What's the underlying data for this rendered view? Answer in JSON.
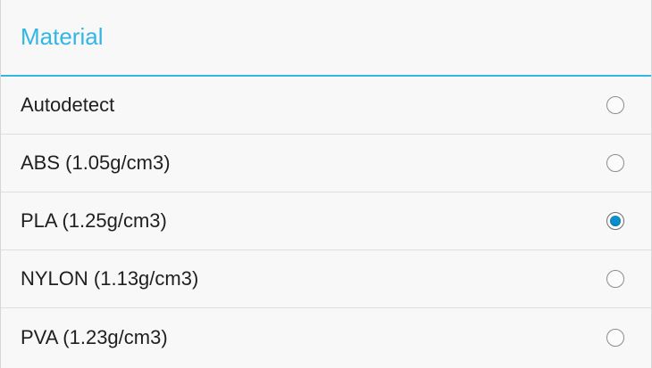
{
  "dialog": {
    "title": "Material",
    "accent_color": "#33b5e5",
    "selected_color": "#0d8fcf",
    "options": [
      {
        "label": "Autodetect",
        "selected": false
      },
      {
        "label": "ABS (1.05g/cm3)",
        "selected": false
      },
      {
        "label": "PLA (1.25g/cm3)",
        "selected": true
      },
      {
        "label": "NYLON (1.13g/cm3)",
        "selected": false
      },
      {
        "label": "PVA (1.23g/cm3)",
        "selected": false
      }
    ]
  }
}
